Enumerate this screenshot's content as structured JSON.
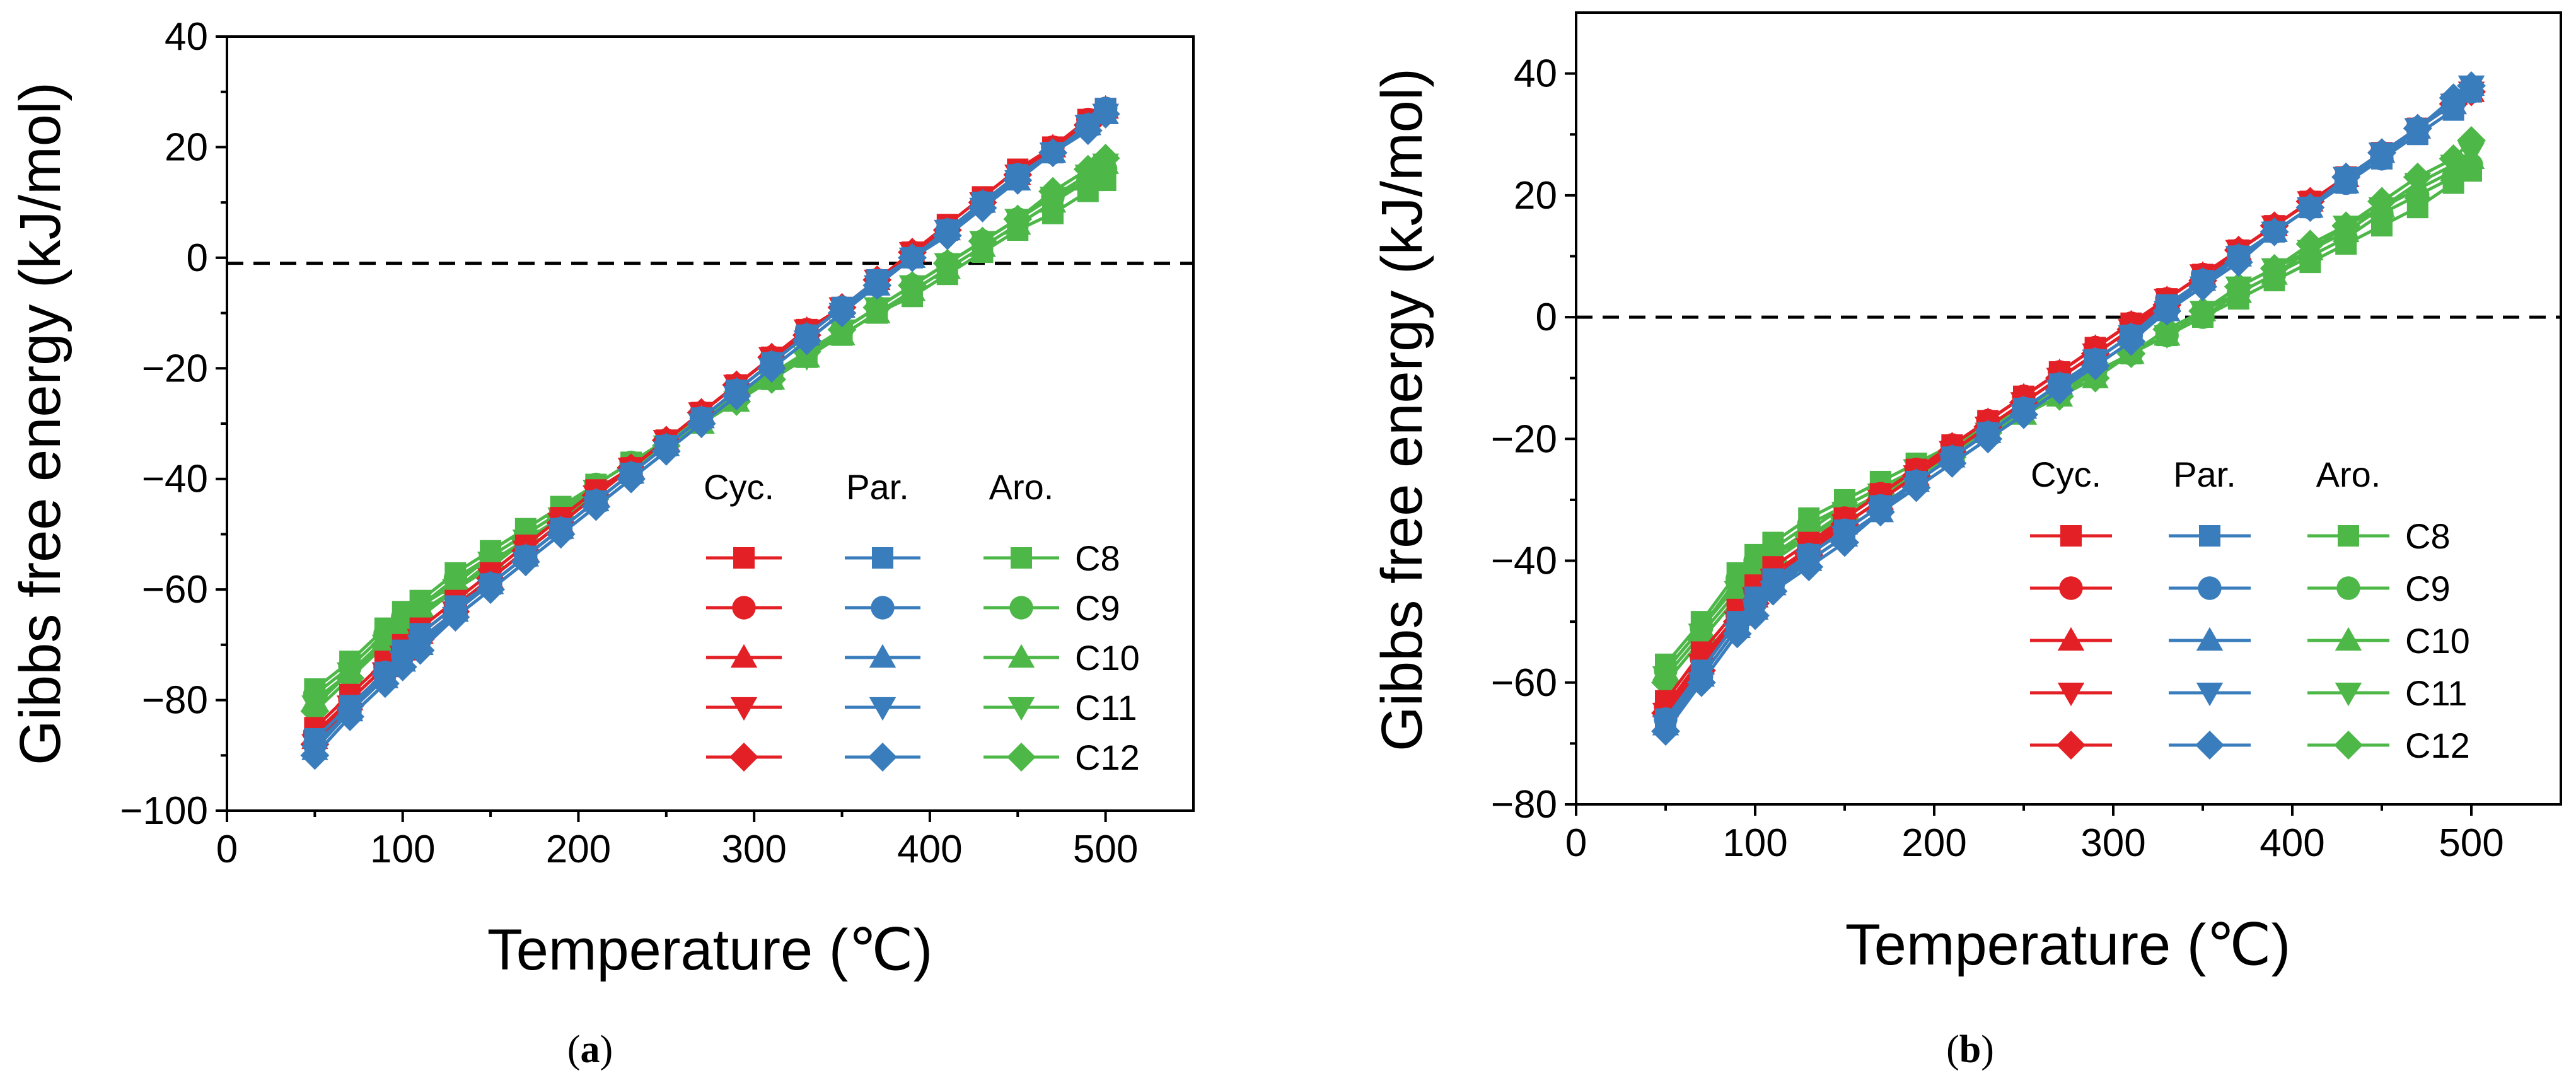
{
  "series_styles": [
    {
      "key": "cyc",
      "name": "Cyc.",
      "color": "#e32026"
    },
    {
      "key": "par",
      "name": "Par.",
      "color": "#3a7dbd"
    },
    {
      "key": "aro",
      "name": "Aro.",
      "color": "#4db848"
    }
  ],
  "markers": [
    "square",
    "circle",
    "triangle-up",
    "triangle-down",
    "diamond"
  ],
  "carbon_labels": [
    "C8",
    "C9",
    "C10",
    "C11",
    "C12"
  ],
  "chart_data": [
    {
      "type": "line",
      "panel_label": "(a)",
      "panel_letter": "a",
      "title": "",
      "xlabel": "Temperature (℃)",
      "ylabel": "Gibbs free energy (kJ/mol)",
      "xlim": [
        0,
        550
      ],
      "ylim": [
        -100,
        40
      ],
      "xticks": [
        0,
        100,
        200,
        300,
        400,
        500
      ],
      "yticks": [
        -100,
        -80,
        -60,
        -40,
        -20,
        0,
        20,
        40
      ],
      "reference_line_y": -1,
      "legend_placement": "lower-right",
      "x": [
        50,
        70,
        90,
        100,
        110,
        130,
        150,
        170,
        190,
        210,
        230,
        250,
        270,
        290,
        310,
        330,
        350,
        370,
        390,
        410,
        430,
        450,
        470,
        490,
        500
      ],
      "series": [
        {
          "group": "Cyc.",
          "carbon": "C8",
          "values": [
            -85,
            -79,
            -73,
            -70,
            -67,
            -62,
            -57,
            -52,
            -47,
            -42,
            -38,
            -33,
            -28,
            -23,
            -18,
            -13,
            -9,
            -4,
            1,
            6,
            11,
            16,
            20,
            25,
            27
          ]
        },
        {
          "group": "Cyc.",
          "carbon": "C9",
          "values": [
            -86,
            -80,
            -74,
            -71,
            -68,
            -63,
            -58,
            -53,
            -48,
            -43,
            -38,
            -33,
            -28,
            -23,
            -18,
            -13,
            -9,
            -4,
            1,
            5,
            10,
            15,
            20,
            25,
            27
          ]
        },
        {
          "group": "Cyc.",
          "carbon": "C10",
          "values": [
            -87,
            -80,
            -74,
            -71,
            -68,
            -63,
            -58,
            -53,
            -48,
            -43,
            -38,
            -33,
            -28,
            -23,
            -18,
            -13,
            -9,
            -4,
            1,
            5,
            10,
            15,
            20,
            24,
            27
          ]
        },
        {
          "group": "Cyc.",
          "carbon": "C11",
          "values": [
            -88,
            -81,
            -75,
            -72,
            -69,
            -64,
            -58,
            -53,
            -48,
            -43,
            -38,
            -33,
            -28,
            -23,
            -18,
            -13,
            -9,
            -4,
            1,
            5,
            10,
            15,
            19,
            24,
            26
          ]
        },
        {
          "group": "Cyc.",
          "carbon": "C12",
          "values": [
            -88,
            -81,
            -75,
            -72,
            -69,
            -64,
            -58,
            -53,
            -48,
            -43,
            -38,
            -33,
            -28,
            -23,
            -18,
            -14,
            -9,
            -4,
            1,
            5,
            10,
            15,
            19,
            24,
            26
          ]
        },
        {
          "group": "Par.",
          "carbon": "C8",
          "values": [
            -87,
            -81,
            -75,
            -71,
            -68,
            -63,
            -59,
            -54,
            -49,
            -44,
            -39,
            -34,
            -29,
            -24,
            -19,
            -14,
            -9,
            -4,
            0,
            5,
            10,
            15,
            19,
            24,
            27
          ]
        },
        {
          "group": "Par.",
          "carbon": "C9",
          "values": [
            -88,
            -82,
            -75,
            -72,
            -69,
            -64,
            -59,
            -54,
            -49,
            -44,
            -39,
            -34,
            -29,
            -24,
            -19,
            -14,
            -9,
            -5,
            0,
            5,
            10,
            15,
            19,
            24,
            27
          ]
        },
        {
          "group": "Par.",
          "carbon": "C10",
          "values": [
            -89,
            -82,
            -76,
            -73,
            -70,
            -64,
            -59,
            -54,
            -49,
            -44,
            -39,
            -34,
            -29,
            -24,
            -19,
            -14,
            -9,
            -5,
            0,
            5,
            10,
            14,
            19,
            24,
            26
          ]
        },
        {
          "group": "Par.",
          "carbon": "C11",
          "values": [
            -90,
            -83,
            -77,
            -73,
            -70,
            -65,
            -60,
            -55,
            -50,
            -45,
            -40,
            -35,
            -30,
            -25,
            -20,
            -15,
            -10,
            -5,
            0,
            5,
            9,
            14,
            19,
            24,
            26
          ]
        },
        {
          "group": "Par.",
          "carbon": "C12",
          "values": [
            -90,
            -83,
            -77,
            -74,
            -71,
            -65,
            -60,
            -55,
            -50,
            -45,
            -40,
            -35,
            -30,
            -25,
            -20,
            -15,
            -10,
            -5,
            0,
            4,
            9,
            14,
            19,
            23,
            26
          ]
        },
        {
          "group": "Aro.",
          "carbon": "C8",
          "values": [
            -78,
            -73,
            -67,
            -64,
            -62,
            -57,
            -53,
            -49,
            -45,
            -41,
            -37,
            -33,
            -29,
            -25,
            -22,
            -18,
            -14,
            -10,
            -7,
            -3,
            1,
            5,
            8,
            12,
            14
          ]
        },
        {
          "group": "Aro.",
          "carbon": "C9",
          "values": [
            -79,
            -74,
            -68,
            -65,
            -63,
            -58,
            -54,
            -50,
            -46,
            -41,
            -37,
            -33,
            -29,
            -25,
            -21,
            -17,
            -13,
            -9,
            -5,
            -1,
            3,
            7,
            11,
            14,
            16
          ]
        },
        {
          "group": "Aro.",
          "carbon": "C10",
          "values": [
            -80,
            -75,
            -69,
            -66,
            -63,
            -59,
            -54,
            -50,
            -46,
            -42,
            -38,
            -34,
            -30,
            -26,
            -22,
            -18,
            -14,
            -10,
            -6,
            -2,
            2,
            6,
            10,
            14,
            17
          ]
        },
        {
          "group": "Aro.",
          "carbon": "C11",
          "values": [
            -81,
            -75,
            -70,
            -67,
            -64,
            -60,
            -55,
            -51,
            -47,
            -42,
            -38,
            -34,
            -30,
            -26,
            -22,
            -18,
            -13,
            -9,
            -5,
            -1,
            3,
            7,
            11,
            15,
            17
          ]
        },
        {
          "group": "Aro.",
          "carbon": "C12",
          "values": [
            -82,
            -76,
            -70,
            -67,
            -65,
            -60,
            -56,
            -51,
            -47,
            -43,
            -38,
            -34,
            -30,
            -26,
            -22,
            -17,
            -13,
            -9,
            -5,
            -1,
            3,
            7,
            12,
            16,
            18
          ]
        }
      ]
    },
    {
      "type": "line",
      "panel_label": "(b)",
      "panel_letter": "b",
      "title": "",
      "xlabel": "Temperature (℃)",
      "ylabel": "Gibbs free energy (kJ/mol)",
      "xlim": [
        0,
        550
      ],
      "ylim": [
        -80,
        50
      ],
      "xticks": [
        0,
        100,
        200,
        300,
        400,
        500
      ],
      "yticks": [
        -80,
        -60,
        -40,
        -20,
        0,
        20,
        40
      ],
      "reference_line_y": 0,
      "legend_placement": "lower-right",
      "x": [
        50,
        70,
        90,
        100,
        110,
        130,
        150,
        170,
        190,
        210,
        230,
        250,
        270,
        290,
        310,
        330,
        350,
        370,
        390,
        410,
        430,
        450,
        470,
        490,
        500
      ],
      "series": [
        {
          "group": "Cyc.",
          "carbon": "C8",
          "values": [
            -63,
            -55,
            -48,
            -44,
            -41,
            -37,
            -33,
            -29,
            -25,
            -21,
            -17,
            -13,
            -9,
            -5,
            -1,
            3,
            7,
            11,
            15,
            19,
            23,
            27,
            31,
            35,
            37
          ]
        },
        {
          "group": "Cyc.",
          "carbon": "C9",
          "values": [
            -64,
            -56,
            -49,
            -45,
            -42,
            -38,
            -33,
            -29,
            -25,
            -21,
            -17,
            -13,
            -9,
            -5,
            -1,
            3,
            7,
            11,
            15,
            19,
            23,
            27,
            31,
            35,
            37
          ]
        },
        {
          "group": "Cyc.",
          "carbon": "C10",
          "values": [
            -64,
            -57,
            -49,
            -46,
            -42,
            -38,
            -34,
            -30,
            -26,
            -21,
            -17,
            -13,
            -9,
            -5,
            -1,
            3,
            7,
            11,
            15,
            19,
            23,
            27,
            31,
            35,
            37
          ]
        },
        {
          "group": "Cyc.",
          "carbon": "C11",
          "values": [
            -65,
            -57,
            -50,
            -46,
            -43,
            -38,
            -34,
            -30,
            -26,
            -22,
            -18,
            -14,
            -10,
            -6,
            -2,
            3,
            7,
            11,
            15,
            19,
            23,
            27,
            31,
            35,
            37
          ]
        },
        {
          "group": "Cyc.",
          "carbon": "C12",
          "values": [
            -65,
            -58,
            -50,
            -47,
            -43,
            -39,
            -34,
            -30,
            -26,
            -22,
            -18,
            -14,
            -10,
            -6,
            -2,
            2,
            6,
            11,
            15,
            19,
            23,
            27,
            31,
            35,
            37
          ]
        },
        {
          "group": "Par.",
          "carbon": "C8",
          "values": [
            -66,
            -58,
            -50,
            -46,
            -43,
            -39,
            -35,
            -31,
            -27,
            -23,
            -19,
            -15,
            -11,
            -7,
            -3,
            2,
            6,
            10,
            14,
            18,
            22,
            26,
            30,
            34,
            37
          ]
        },
        {
          "group": "Par.",
          "carbon": "C9",
          "values": [
            -66,
            -59,
            -51,
            -47,
            -44,
            -39,
            -35,
            -31,
            -27,
            -23,
            -19,
            -15,
            -11,
            -7,
            -3,
            1,
            6,
            10,
            14,
            18,
            22,
            26,
            31,
            35,
            37
          ]
        },
        {
          "group": "Par.",
          "carbon": "C10",
          "values": [
            -67,
            -59,
            -51,
            -48,
            -44,
            -40,
            -36,
            -32,
            -27,
            -23,
            -19,
            -15,
            -11,
            -7,
            -3,
            1,
            6,
            10,
            14,
            18,
            22,
            27,
            31,
            35,
            38
          ]
        },
        {
          "group": "Par.",
          "carbon": "C11",
          "values": [
            -67,
            -60,
            -52,
            -48,
            -45,
            -40,
            -36,
            -32,
            -28,
            -24,
            -20,
            -16,
            -12,
            -7,
            -3,
            1,
            5,
            10,
            14,
            18,
            23,
            27,
            31,
            35,
            38
          ]
        },
        {
          "group": "Par.",
          "carbon": "C12",
          "values": [
            -68,
            -60,
            -52,
            -49,
            -45,
            -41,
            -37,
            -32,
            -28,
            -24,
            -20,
            -16,
            -12,
            -8,
            -4,
            1,
            5,
            9,
            14,
            18,
            23,
            27,
            31,
            36,
            38
          ]
        },
        {
          "group": "Aro.",
          "carbon": "C8",
          "values": [
            -57,
            -50,
            -42,
            -39,
            -37,
            -33,
            -30,
            -27,
            -24,
            -21,
            -18,
            -15,
            -12,
            -9,
            -6,
            -3,
            0,
            3,
            6,
            9,
            12,
            15,
            18,
            22,
            24
          ]
        },
        {
          "group": "Aro.",
          "carbon": "C9",
          "values": [
            -58,
            -51,
            -43,
            -40,
            -38,
            -34,
            -31,
            -28,
            -25,
            -22,
            -18,
            -15,
            -12,
            -9,
            -6,
            -3,
            0,
            4,
            7,
            10,
            13,
            17,
            20,
            23,
            25
          ]
        },
        {
          "group": "Aro.",
          "carbon": "C10",
          "values": [
            -58,
            -51,
            -44,
            -41,
            -39,
            -35,
            -31,
            -28,
            -25,
            -22,
            -19,
            -16,
            -13,
            -10,
            -6,
            -3,
            1,
            4,
            7,
            11,
            14,
            18,
            21,
            24,
            26
          ]
        },
        {
          "group": "Aro.",
          "carbon": "C11",
          "values": [
            -59,
            -52,
            -45,
            -42,
            -39,
            -36,
            -32,
            -29,
            -25,
            -22,
            -19,
            -16,
            -13,
            -9,
            -6,
            -3,
            1,
            5,
            8,
            11,
            15,
            18,
            22,
            25,
            27
          ]
        },
        {
          "group": "Aro.",
          "carbon": "C12",
          "values": [
            -60,
            -53,
            -46,
            -43,
            -40,
            -36,
            -33,
            -29,
            -26,
            -23,
            -19,
            -16,
            -13,
            -10,
            -6,
            -2,
            1,
            5,
            8,
            12,
            15,
            19,
            23,
            26,
            29
          ]
        }
      ]
    }
  ]
}
